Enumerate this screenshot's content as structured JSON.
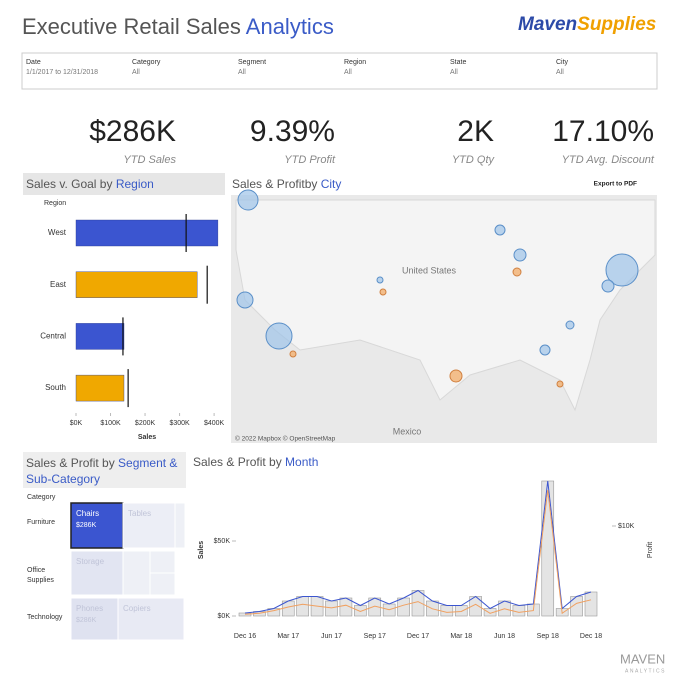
{
  "header": {
    "title": "Executive Retail Sales ",
    "title_accent": "Analytics",
    "logo_a": "Maven",
    "logo_b": "Supplies"
  },
  "filters": [
    {
      "label": "Date",
      "value": "1/1/2017 to 12/31/2018"
    },
    {
      "label": "Category",
      "value": "All"
    },
    {
      "label": "Segment",
      "value": "All"
    },
    {
      "label": "Region",
      "value": "All"
    },
    {
      "label": "State",
      "value": "All"
    },
    {
      "label": "City",
      "value": "All"
    }
  ],
  "kpis": [
    {
      "value": "$286K",
      "label": "YTD Sales"
    },
    {
      "value": "9.39%",
      "label": "YTD Profit"
    },
    {
      "value": "2K",
      "label": "YTD Qty"
    },
    {
      "value": "17.10%",
      "label": "YTD Avg. Discount"
    }
  ],
  "region_chart": {
    "type": "bar",
    "title": "Sales v. Goal by ",
    "title_accent": "Region",
    "y_label": "Region",
    "x_label": "Sales",
    "categories": [
      "West",
      "East",
      "Central",
      "South"
    ],
    "values": [
      411000,
      351000,
      139000,
      139000
    ],
    "goals": [
      319000,
      380000,
      136000,
      151000
    ],
    "colors": [
      "#3b55d0",
      "#f0a800",
      "#3b55d0",
      "#f0a800"
    ],
    "xlim": [
      0,
      420000
    ],
    "xticks": [
      {
        "value": 0,
        "label": "$0K"
      },
      {
        "value": 100000,
        "label": "$100K"
      },
      {
        "value": 200000,
        "label": "$200K"
      },
      {
        "value": 300000,
        "label": "$300K"
      },
      {
        "value": 400000,
        "label": "$400K"
      }
    ]
  },
  "map": {
    "title": "Sales & Profitby ",
    "title_accent": "City",
    "export": "Export to PDF",
    "country": "United States",
    "country2": "Mexico",
    "credit": "© 2022 Mapbox © OpenStreetMap"
  },
  "treemap": {
    "title": "Sales & Profit by ",
    "title_accent": "Segment & Sub-Category",
    "y_label": "Category",
    "categories": [
      "Furniture",
      "Office Supplies",
      "Technology"
    ],
    "cells": [
      {
        "label": "Chairs",
        "value_label": "$286K"
      },
      {
        "label": "Tables"
      },
      {
        "label": "Storage"
      },
      {
        "label": "Phones",
        "value_label": "$286K"
      },
      {
        "label": "Copiers"
      }
    ]
  },
  "month_chart": {
    "type": "bar",
    "title": "Sales & Profit by ",
    "title_accent": "Month",
    "y_label": "Sales",
    "y2_label": "Profit",
    "categories": [
      "Dec 16",
      null,
      null,
      "Mar 17",
      null,
      null,
      "Jun 17",
      null,
      null,
      "Sep 17",
      null,
      null,
      "Dec 17",
      null,
      null,
      "Mar 18",
      null,
      null,
      "Jun 18",
      null,
      null,
      "Sep 18",
      null,
      null,
      "Dec 18"
    ],
    "series": [
      {
        "name": "Sales",
        "color": "#3b55d0",
        "values": [
          2000,
          3000,
          5000,
          10000,
          13000,
          13000,
          10000,
          12000,
          7000,
          12000,
          8000,
          12000,
          17000,
          10000,
          7000,
          7000,
          13000,
          5000,
          10000,
          7000,
          8000,
          90000,
          5000,
          13000,
          16000
        ]
      },
      {
        "name": "Profit",
        "color": "#f0a060",
        "axis": "y2",
        "values": [
          200,
          300,
          600,
          1000,
          1300,
          1100,
          900,
          1200,
          500,
          1100,
          700,
          1200,
          1600,
          800,
          400,
          500,
          1300,
          300,
          800,
          400,
          600,
          14000,
          300,
          1400,
          1800
        ]
      }
    ],
    "ylim": [
      0,
      90000
    ],
    "yticks": [
      {
        "value": 0,
        "label": "$0K"
      },
      {
        "value": 50000,
        "label": "$50K"
      }
    ],
    "y2lim": [
      0,
      15000
    ],
    "y2ticks": [
      {
        "value": 10000,
        "label": "$10K"
      }
    ]
  },
  "footer": {
    "brand": "MAVEN",
    "sub": "ANALYTICS"
  }
}
